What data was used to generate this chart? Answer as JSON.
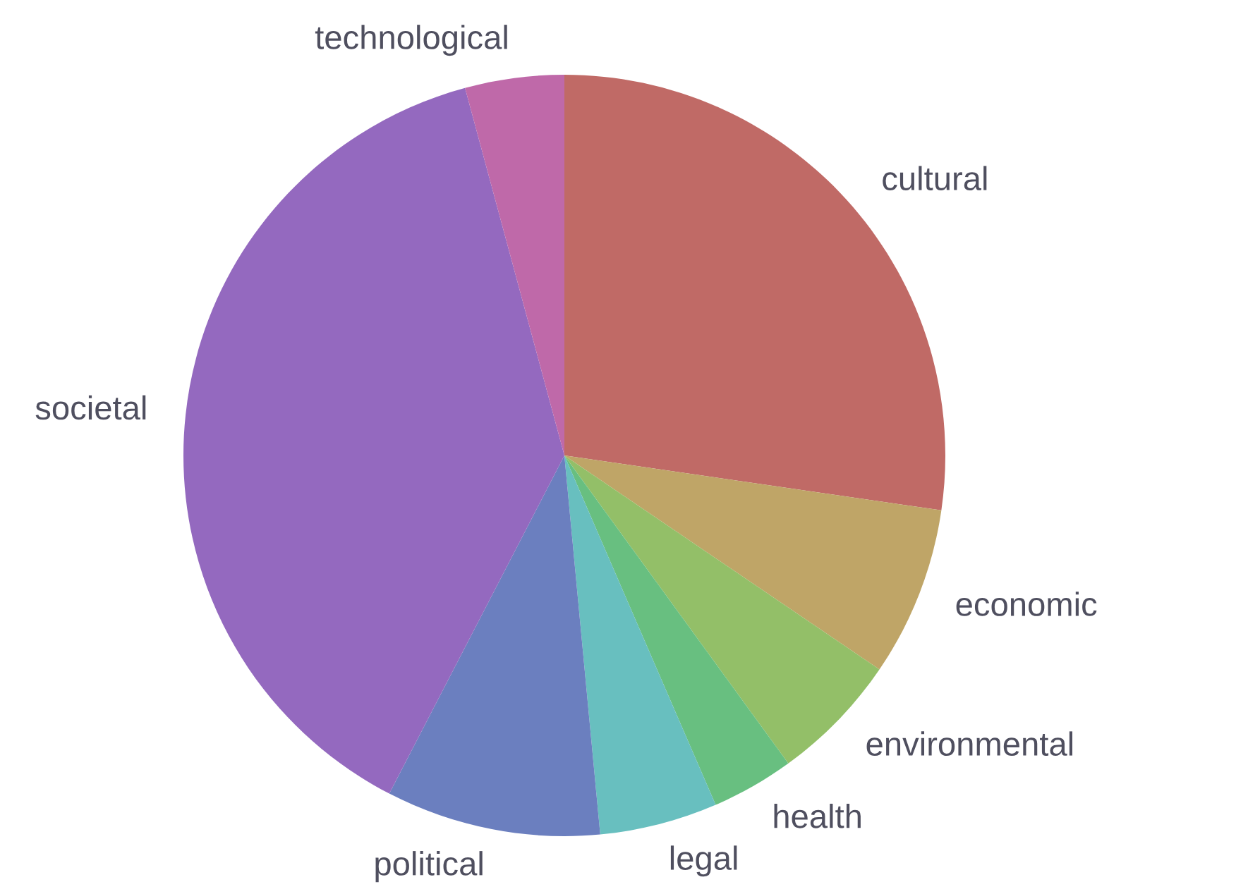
{
  "chart_data": {
    "type": "pie",
    "categories": [
      "cultural",
      "economic",
      "environmental",
      "health",
      "legal",
      "political",
      "societal",
      "technological"
    ],
    "values": [
      27.3,
      7.2,
      5.5,
      3.5,
      5.0,
      9.1,
      38.2,
      4.2
    ],
    "colors": [
      "#c06a66",
      "#bfa567",
      "#93bf68",
      "#68bf80",
      "#68bfbf",
      "#6b7fbf",
      "#9469bf",
      "#bf69a9"
    ]
  }
}
